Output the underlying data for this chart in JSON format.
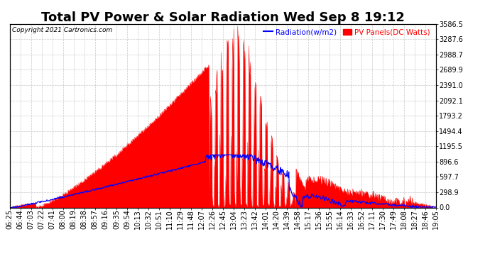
{
  "title": "Total PV Power & Solar Radiation Wed Sep 8 19:12",
  "copyright": "Copyright 2021 Cartronics.com",
  "legend_radiation": "Radiation(w/m2)",
  "legend_pv": "PV Panels(DC Watts)",
  "ylabel_right_ticks": [
    0.0,
    298.9,
    597.7,
    896.6,
    1195.5,
    1494.4,
    1793.2,
    2092.1,
    2391.0,
    2689.9,
    2988.7,
    3287.6,
    3586.5
  ],
  "ylim": [
    0,
    3586.5
  ],
  "background_color": "#ffffff",
  "grid_color": "#c8c8c8",
  "pv_color": "#ff0000",
  "radiation_color": "#0000ff",
  "title_fontsize": 13,
  "tick_fontsize": 7,
  "radiation_legend_color": "#0000ff",
  "pv_legend_color": "#ff0000"
}
